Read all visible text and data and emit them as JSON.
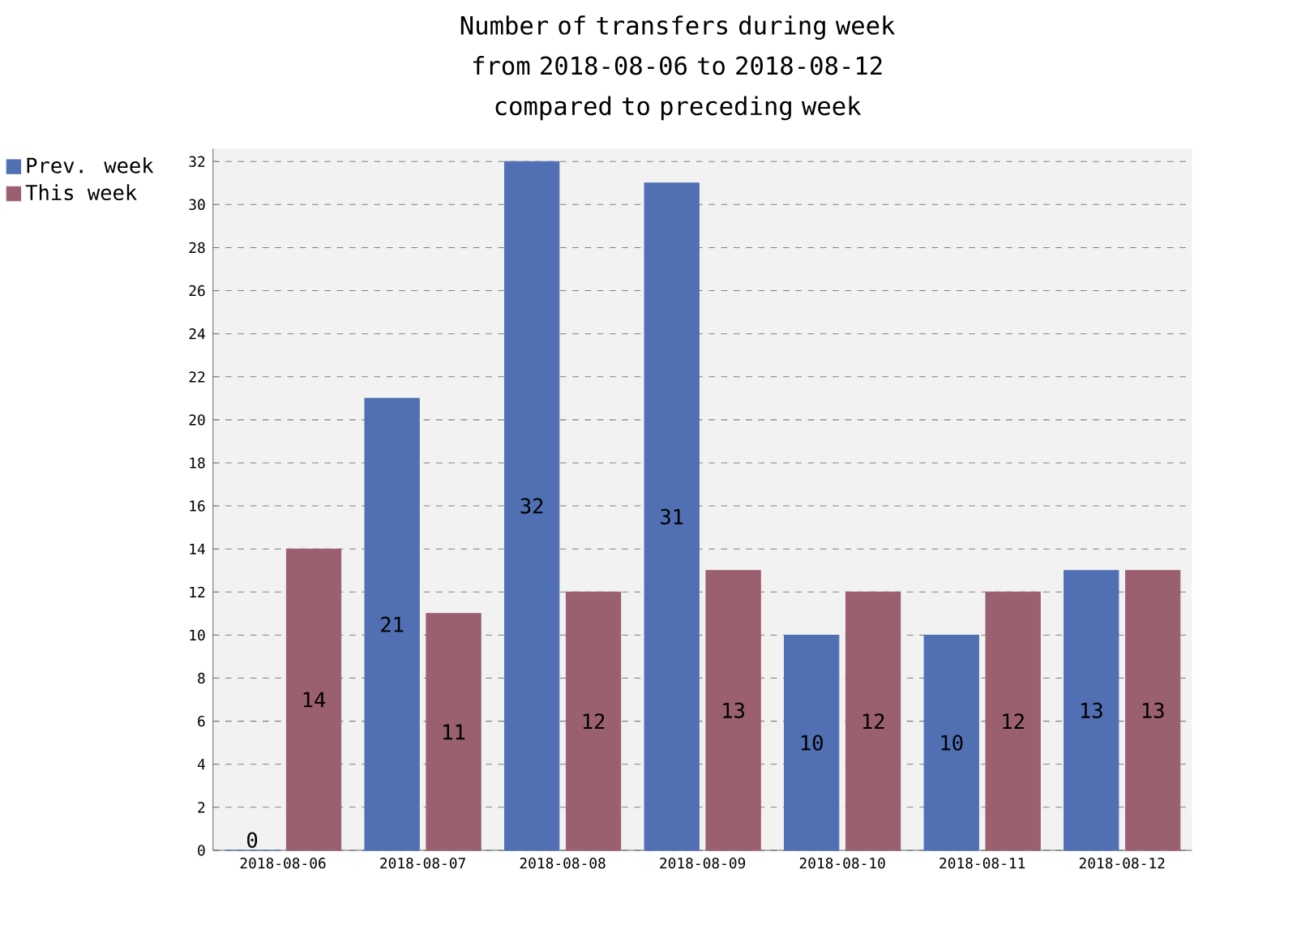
{
  "chart_data": {
    "type": "bar",
    "title": "Number of transfers during week from 2018-08-06 to 2018-08-12 compared to preceding week",
    "categories": [
      "2018-08-06",
      "2018-08-07",
      "2018-08-08",
      "2018-08-09",
      "2018-08-10",
      "2018-08-11",
      "2018-08-12"
    ],
    "series": [
      {
        "name": "Prev. week",
        "color": "#5170b3",
        "values": [
          0,
          21,
          32,
          31,
          10,
          10,
          13
        ]
      },
      {
        "name": "This week",
        "color": "#9a6070",
        "values": [
          14,
          11,
          12,
          13,
          12,
          12,
          13
        ]
      }
    ],
    "ylim": [
      0,
      32.6
    ],
    "yticks": [
      0,
      2,
      4,
      6,
      8,
      10,
      12,
      14,
      16,
      18,
      20,
      22,
      24,
      26,
      28,
      30,
      32
    ],
    "grid": "y",
    "legend": "top left",
    "data_labels": true
  }
}
